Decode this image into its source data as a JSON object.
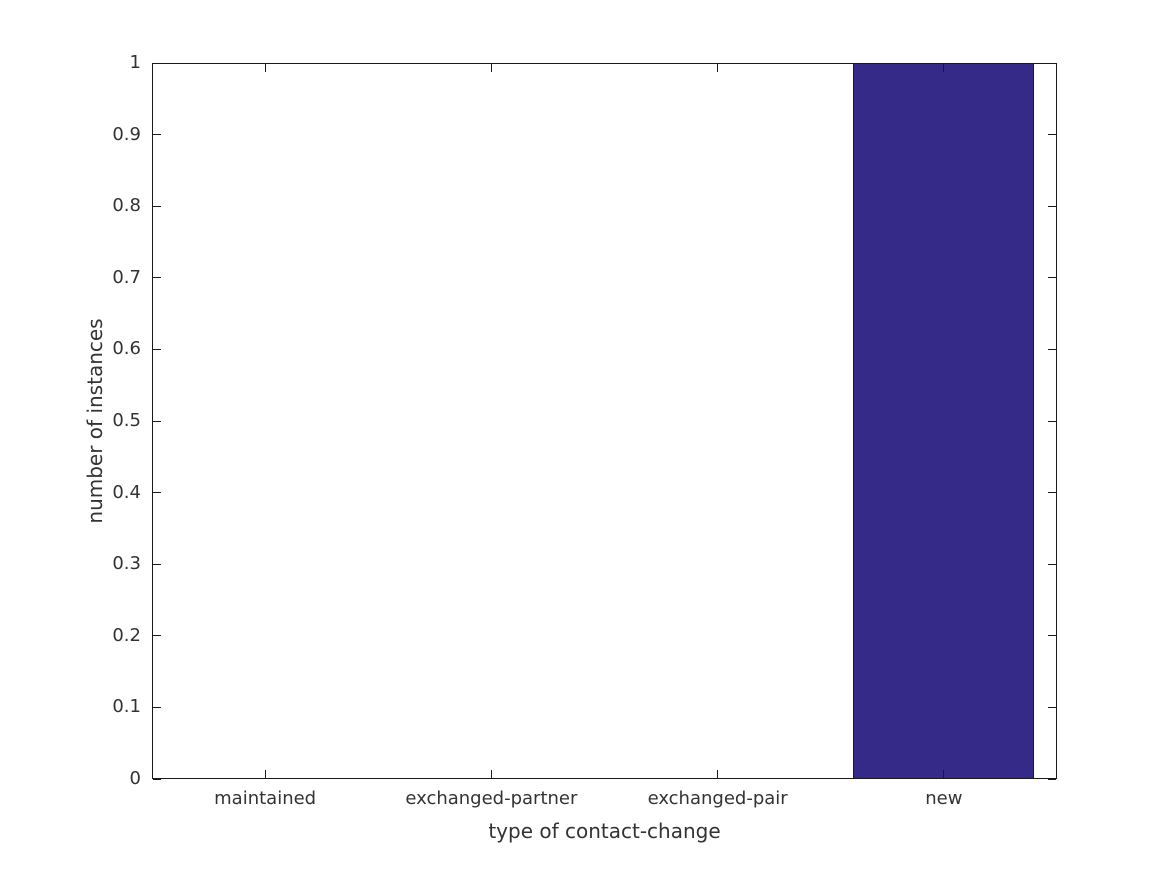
{
  "figure": {
    "background_color": "#ffffff",
    "axis_color": "#1a1a1a",
    "text_color": "#333333"
  },
  "chart_data": {
    "type": "bar",
    "title": "",
    "xlabel": "type of contact-change",
    "ylabel": "number of instances",
    "categories": [
      "maintained",
      "exchanged-partner",
      "exchanged-pair",
      "new"
    ],
    "values": [
      0,
      0,
      0,
      1
    ],
    "ylim": [
      0,
      1
    ],
    "yticks": [
      0,
      0.1,
      0.2,
      0.3,
      0.4,
      0.5,
      0.6,
      0.7,
      0.8,
      0.9,
      1
    ],
    "ytick_labels": [
      "0",
      "0.1",
      "0.2",
      "0.3",
      "0.4",
      "0.5",
      "0.6",
      "0.7",
      "0.8",
      "0.9",
      "1"
    ],
    "bar_color": "#352a87",
    "bar_edge_color": "#1a1a1a",
    "bar_width_fraction": 0.8,
    "grid": false,
    "legend": null,
    "ticks_inward_all_sides": true,
    "box_border": true
  }
}
